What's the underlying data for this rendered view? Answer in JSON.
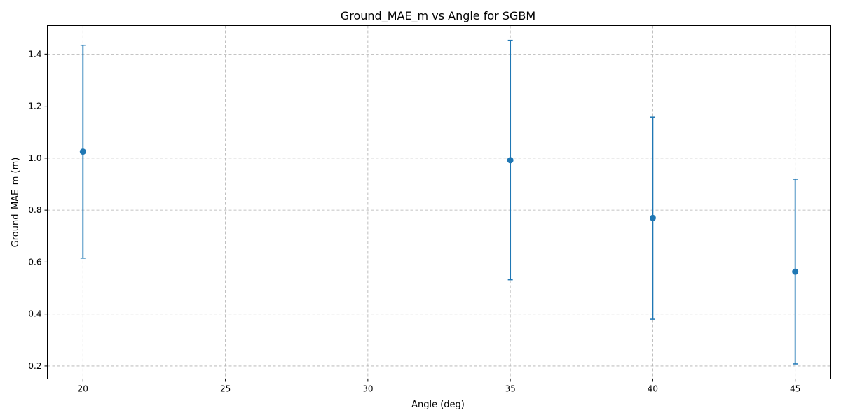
{
  "chart_data": {
    "type": "scatter",
    "title": "Ground_MAE_m vs Angle for SGBM",
    "xlabel": "Angle (deg)",
    "ylabel": "Ground_MAE_m (m)",
    "xlim": [
      18.75,
      46.25
    ],
    "ylim": [
      0.15,
      1.51
    ],
    "xticks": [
      20,
      25,
      30,
      35,
      40,
      45
    ],
    "yticks": [
      0.2,
      0.4,
      0.6,
      0.8,
      1.0,
      1.2,
      1.4
    ],
    "grid": true,
    "color": "#1f77b4",
    "series": [
      {
        "x": [
          20,
          35,
          40,
          45
        ],
        "y": [
          1.025,
          0.992,
          0.77,
          0.563
        ],
        "yerr_low": [
          0.615,
          0.532,
          0.38,
          0.208
        ],
        "yerr_high": [
          1.434,
          1.453,
          1.158,
          0.919
        ]
      }
    ]
  }
}
